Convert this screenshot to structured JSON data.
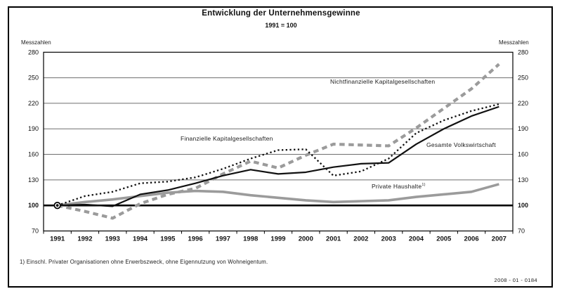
{
  "header": {
    "title": "Entwicklung der Unternehmensgewinne",
    "subtitle": "1991 = 100"
  },
  "axis": {
    "unit_label": "Messzahlen"
  },
  "footnote": "1) Einschl. Privater Organisationen ohne Erwerbszweck, ohne Eigennutzung von Wohneigentum.",
  "figure_code": "2008 - 01 - 0184",
  "chart_data": {
    "type": "line",
    "title": "Entwicklung der Unternehmensgewinne",
    "subtitle": "1991 = 100",
    "ylabel": "Messzahlen",
    "xlabel": "",
    "ylim": [
      70,
      280
    ],
    "yticks": [
      70,
      100,
      130,
      160,
      190,
      220,
      250,
      280
    ],
    "baseline": 100,
    "grid": "horizontal",
    "legend_position": "inline-labels",
    "categories": [
      "1991",
      "1992",
      "1993",
      "1994",
      "1995",
      "1996",
      "1997",
      "1998",
      "1999",
      "2000",
      "2001",
      "2002",
      "2003",
      "2004",
      "2005",
      "2006",
      "2007"
    ],
    "origin_marker": {
      "category": "1991",
      "value": 100
    },
    "series": [
      {
        "name": "Nichtfinanzielle Kapitalgesellschaften",
        "style": "dashed-thick",
        "color": "#9b9b9b",
        "z": 1,
        "values": [
          100,
          93,
          85,
          102,
          113,
          120,
          137,
          152,
          144,
          159,
          172,
          171,
          170,
          191,
          214,
          237,
          266
        ]
      },
      {
        "name": "Finanzielle Kapitalgesellschaften",
        "style": "dotted",
        "color": "#111111",
        "z": 2,
        "values": [
          100,
          111,
          116,
          126,
          128,
          133,
          143,
          155,
          165,
          166,
          135,
          140,
          155,
          185,
          200,
          211,
          219
        ]
      },
      {
        "name": "Gesamte Volkswirtschaft",
        "style": "solid",
        "color": "#111111",
        "z": 3,
        "values": [
          100,
          101,
          99,
          113,
          118,
          126,
          135,
          142,
          137,
          139,
          145,
          149,
          150,
          172,
          190,
          205,
          216
        ]
      },
      {
        "name": "Private Haushalte",
        "footnote_marker": "1)",
        "style": "solid-thick",
        "color": "#9b9b9b",
        "z": 0,
        "values": [
          100,
          104,
          107,
          111,
          115,
          117,
          116,
          112,
          109,
          106,
          104,
          105,
          106,
          110,
          113,
          116,
          125
        ]
      }
    ]
  }
}
